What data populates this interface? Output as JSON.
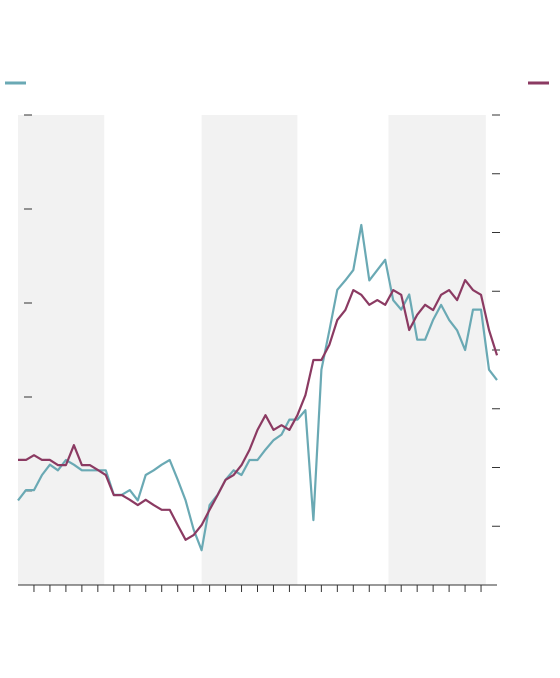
{
  "chart_data": {
    "type": "line",
    "x": [
      0,
      0.5,
      1,
      1.5,
      2,
      2.5,
      3,
      3.5,
      4,
      4.5,
      5,
      5.5,
      6,
      6.5,
      7,
      7.5,
      8,
      8.5,
      9,
      9.5,
      10,
      10.5,
      11,
      11.5,
      12,
      12.5,
      13,
      13.5,
      14,
      14.5,
      15,
      15.5,
      16,
      16.5,
      17,
      17.5,
      18,
      18.5,
      19,
      19.5,
      20,
      20.5,
      21,
      21.5,
      22,
      22.5,
      23,
      23.5,
      24,
      24.5,
      25,
      25.5,
      26,
      26.5,
      27,
      27.5,
      28,
      28.5,
      29,
      29.5,
      30
    ],
    "series": [
      {
        "color": "#6aa9b4",
        "axis": "y",
        "values": [
          0.9,
          1.01,
          1.01,
          1.17,
          1.28,
          1.22,
          1.33,
          1.28,
          1.22,
          1.22,
          1.22,
          1.22,
          0.96,
          0.96,
          1.01,
          0.9,
          1.17,
          1.22,
          1.28,
          1.33,
          1.12,
          0.9,
          0.59,
          0.37,
          0.85,
          0.96,
          1.12,
          1.22,
          1.17,
          1.33,
          1.33,
          1.44,
          1.54,
          1.6,
          1.76,
          1.76,
          1.86,
          0.69,
          2.29,
          2.71,
          3.14,
          3.24,
          3.35,
          3.83,
          3.24,
          3.35,
          3.46,
          3.03,
          2.93,
          3.09,
          2.61,
          2.61,
          2.82,
          2.98,
          2.82,
          2.71,
          2.5,
          2.93,
          2.93,
          2.29,
          2.18
        ]
      },
      {
        "color": "#8b3a62",
        "axis": "y2",
        "values": [
          2.13,
          2.13,
          2.21,
          2.13,
          2.13,
          2.04,
          2.04,
          2.38,
          2.04,
          2.04,
          1.96,
          1.87,
          1.53,
          1.53,
          1.45,
          1.36,
          1.45,
          1.36,
          1.28,
          1.28,
          1.02,
          0.77,
          0.85,
          1.02,
          1.28,
          1.53,
          1.79,
          1.87,
          2.04,
          2.3,
          2.64,
          2.89,
          2.64,
          2.72,
          2.64,
          2.89,
          3.23,
          3.83,
          3.83,
          4.09,
          4.51,
          4.68,
          5.02,
          4.94,
          4.77,
          4.85,
          4.77,
          5.02,
          4.94,
          4.34,
          4.6,
          4.77,
          4.68,
          4.94,
          5.02,
          4.85,
          5.19,
          5.02,
          4.94,
          4.34,
          3.91
        ]
      }
    ],
    "bands": [
      [
        0,
        5.4
      ],
      [
        11.5,
        17.5
      ],
      [
        23.2,
        29.3
      ]
    ],
    "xlim": [
      0,
      30
    ],
    "xticks": [
      1,
      2,
      3,
      4,
      5,
      6,
      7,
      8,
      9,
      10,
      11,
      12,
      13,
      14,
      15,
      16,
      17,
      18,
      19,
      20,
      21,
      22,
      23,
      24,
      25,
      26,
      27,
      28,
      29
    ],
    "ylim": [
      0,
      5
    ],
    "yticks": [
      1,
      2,
      3,
      4,
      5
    ],
    "y2lim": [
      0,
      8
    ],
    "y2ticks": [
      1,
      2,
      3,
      4,
      5,
      6,
      7,
      8
    ]
  }
}
